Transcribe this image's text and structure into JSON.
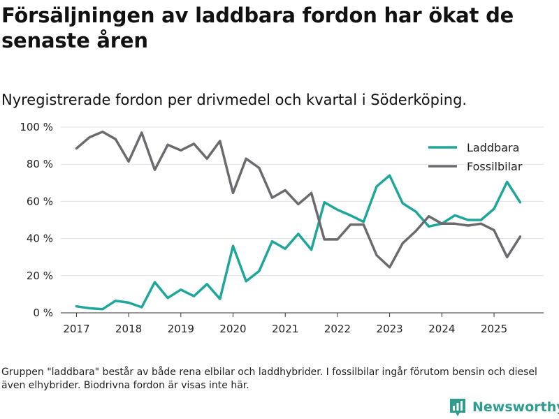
{
  "title": "Försäljningen av laddbara fordon har ökat de senaste åren",
  "subtitle": "Nyregistrerade fordon per drivmedel och kvartal i Söderköping.",
  "footnote": "Gruppen \"laddbara\" består av både rena elbilar och laddhybrider. I fossilbilar ingår förutom bensin och diesel även elhybrider. Biodrivna fordon är visas inte här.",
  "brand": {
    "name": "Newsworthy",
    "icon": "bar-chart-logo-icon"
  },
  "colors": {
    "laddbara": "#1fa69a",
    "fossil": "#6b6b6f",
    "grid": "#e3e3e3",
    "axis": "#333333",
    "brand": "#2e9c8f"
  },
  "chart_data": {
    "type": "line",
    "title": "Försäljningen av laddbara fordon har ökat de senaste åren",
    "subtitle": "Nyregistrerade fordon per drivmedel och kvartal i Söderköping.",
    "xlabel": "",
    "ylabel": "",
    "xlim": [
      2016.7,
      2025.95
    ],
    "ylim": [
      0,
      100
    ],
    "grid": true,
    "legend": "top-right",
    "x_ticks": [
      2017,
      2018,
      2019,
      2020,
      2021,
      2022,
      2023,
      2024,
      2025
    ],
    "x_tick_labels": [
      "2017",
      "2018",
      "2019",
      "2020",
      "2021",
      "2022",
      "2023",
      "2024",
      "2025"
    ],
    "y_ticks": [
      0,
      20,
      40,
      60,
      80,
      100
    ],
    "y_tick_labels": [
      "0 %",
      "20 %",
      "40 %",
      "60 %",
      "80 %",
      "100 %"
    ],
    "x": [
      2017.0,
      2017.25,
      2017.5,
      2017.75,
      2018.0,
      2018.25,
      2018.5,
      2018.75,
      2019.0,
      2019.25,
      2019.5,
      2019.75,
      2020.0,
      2020.25,
      2020.5,
      2020.75,
      2021.0,
      2021.25,
      2021.5,
      2021.75,
      2022.0,
      2022.25,
      2022.5,
      2022.75,
      2023.0,
      2023.25,
      2023.5,
      2023.75,
      2024.0,
      2024.25,
      2024.5,
      2024.75,
      2025.0,
      2025.25,
      2025.5
    ],
    "series": [
      {
        "name": "Laddbara",
        "key": "laddbara",
        "values": [
          3.5,
          2.5,
          2,
          6.5,
          5.5,
          3,
          16.5,
          8,
          12.5,
          9,
          15.5,
          7.5,
          36,
          17,
          22.5,
          38.5,
          34.5,
          42.5,
          34,
          59.5,
          55.5,
          52.5,
          49,
          68,
          74,
          59,
          54.5,
          46.5,
          48,
          52.5,
          50,
          50,
          56,
          70.5,
          59.5
        ]
      },
      {
        "name": "Fossilbilar",
        "key": "fossil",
        "values": [
          88.5,
          94.5,
          97.5,
          93.5,
          81.5,
          97,
          77,
          90.5,
          87.5,
          91,
          83,
          92.5,
          64.5,
          83,
          78,
          62,
          66,
          58.5,
          64.5,
          39.5,
          39.5,
          47.5,
          47.5,
          31,
          24.5,
          37.5,
          44,
          52,
          48,
          48,
          47,
          48,
          44.5,
          30,
          41
        ]
      }
    ]
  }
}
